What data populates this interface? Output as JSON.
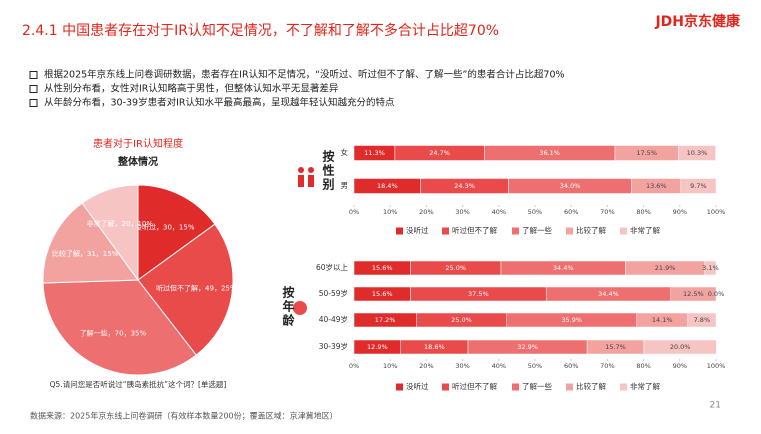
{
  "header": {
    "title": "2.4.1 中国患者存在对于IR认知不足情况，不了解和了解不多合计占比超70%",
    "logo": "JDH京东健康"
  },
  "bullets": [
    "根据2025年京东线上问卷调研数据，患者存在IR认知不足情况，“没听过、听过但不了解、了解一些”的患者合计占比超70%",
    "从性别分布看，女性对IR认知略高于男性，但整体认知水平无显著差异",
    "从年龄分布看，30-39岁患者对IR认知水平最高最高，呈现越年轻认知越充分的特点"
  ],
  "chart_data": [
    {
      "type": "pie",
      "title": "患者对于IR认知程度",
      "subtitle": "整体情况",
      "caption": "Q5.请问您是否听说过“胰岛素抵抗”这个词？[单选题]",
      "categories": [
        "没听过",
        "听过但不了解",
        "了解一些",
        "比较了解",
        "非常了解"
      ],
      "values": [
        30,
        49,
        70,
        31,
        20
      ],
      "value_labels": [
        "没听过，30，15%",
        "听过但不了解，49，25%",
        "了解一些，70，35%",
        "比较了解，31，15%",
        "非常了解，20，10%"
      ],
      "colors": [
        "#e02b2b",
        "#e94b4b",
        "#ee6f6f",
        "#f2a3a0",
        "#f6c4c2"
      ]
    },
    {
      "type": "stacked-bar",
      "group_label": "按性别",
      "categories": [
        "女",
        "男"
      ],
      "series": [
        {
          "name": "没听过",
          "color": "#e02b2b",
          "values": [
            11.3,
            18.4
          ],
          "value_labels": [
            "11.3%",
            "18.4%"
          ]
        },
        {
          "name": "听过但不了解",
          "color": "#e94b4b",
          "values": [
            24.7,
            24.3
          ],
          "value_labels": [
            "24.7%",
            "24.3%"
          ]
        },
        {
          "name": "了解一些",
          "color": "#ee6f6f",
          "values": [
            36.1,
            34.0
          ],
          "value_labels": [
            "36.1%",
            "34.0%"
          ]
        },
        {
          "name": "比较了解",
          "color": "#f2a3a0",
          "values": [
            17.5,
            13.6
          ],
          "value_labels": [
            "17.5%",
            "13.6%"
          ]
        },
        {
          "name": "非常了解",
          "color": "#f6c4c2",
          "values": [
            10.3,
            9.7
          ],
          "value_labels": [
            "10.3%",
            "9.7%"
          ]
        }
      ],
      "xlim": [
        0,
        100
      ],
      "xticks": [
        {
          "value": 0,
          "label": "0%"
        },
        {
          "value": 10,
          "label": "10%"
        },
        {
          "value": 20,
          "label": "20%"
        },
        {
          "value": 30,
          "label": "30%"
        },
        {
          "value": 40,
          "label": "40%"
        },
        {
          "value": 50,
          "label": "50%"
        },
        {
          "value": 60,
          "label": "60%"
        },
        {
          "value": 70,
          "label": "70%"
        },
        {
          "value": 80,
          "label": "80%"
        },
        {
          "value": 90,
          "label": "90%"
        },
        {
          "value": 100,
          "label": "100%"
        }
      ],
      "legend": "bottom"
    },
    {
      "type": "stacked-bar",
      "group_label": "按年龄",
      "categories": [
        "60岁以上",
        "50-59岁",
        "40-49岁",
        "30-39岁"
      ],
      "series": [
        {
          "name": "没听过",
          "color": "#e02b2b",
          "values": [
            15.6,
            15.6,
            17.2,
            12.9
          ],
          "value_labels": [
            "15.6%",
            "15.6%",
            "17.2%",
            "12.9%"
          ]
        },
        {
          "name": "听过但不了解",
          "color": "#e94b4b",
          "values": [
            25.0,
            37.5,
            25.0,
            18.6
          ],
          "value_labels": [
            "25.0%",
            "37.5%",
            "25.0%",
            "18.6%"
          ]
        },
        {
          "name": "了解一些",
          "color": "#ee6f6f",
          "values": [
            34.4,
            34.4,
            35.9,
            32.9
          ],
          "value_labels": [
            "34.4%",
            "34.4%",
            "35.9%",
            "32.9%"
          ]
        },
        {
          "name": "比较了解",
          "color": "#f2a3a0",
          "values": [
            21.9,
            12.5,
            14.1,
            15.7
          ],
          "value_labels": [
            "21.9%",
            "12.5%",
            "14.1%",
            "15.7%"
          ]
        },
        {
          "name": "非常了解",
          "color": "#f6c4c2",
          "values": [
            3.1,
            0.0,
            7.8,
            20.0
          ],
          "value_labels": [
            "3.1%",
            "0.0%",
            "7.8%",
            "20.0%"
          ]
        }
      ],
      "xlim": [
        0,
        100
      ],
      "xticks": [
        {
          "value": 0,
          "label": "0%"
        },
        {
          "value": 10,
          "label": "10%"
        },
        {
          "value": 20,
          "label": "20%"
        },
        {
          "value": 30,
          "label": "30%"
        },
        {
          "value": 40,
          "label": "40%"
        },
        {
          "value": 50,
          "label": "50%"
        },
        {
          "value": 60,
          "label": "60%"
        },
        {
          "value": 70,
          "label": "70%"
        },
        {
          "value": 80,
          "label": "80%"
        },
        {
          "value": 90,
          "label": "90%"
        },
        {
          "value": 100,
          "label": "100%"
        }
      ],
      "legend": "bottom"
    }
  ],
  "footer": {
    "source": "数据来源：2025年京东线上问卷调研（有效样本数量200份；覆盖区域：京津冀地区）",
    "page_number": "21"
  }
}
